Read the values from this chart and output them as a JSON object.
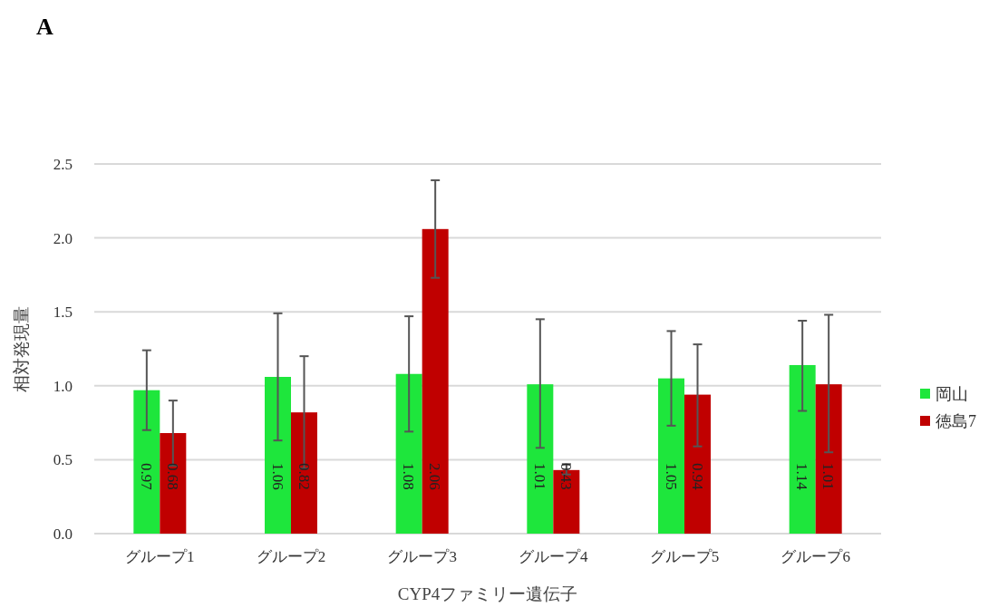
{
  "chart_data": {
    "type": "bar",
    "title": "A",
    "xlabel": "CYP4ファミリー遺伝子",
    "ylabel": "相対発現量",
    "categories": [
      "グループ1",
      "グループ2",
      "グループ3",
      "グループ4",
      "グループ5",
      "グループ6"
    ],
    "series": [
      {
        "name": "岡山",
        "color": "#1ee63c",
        "values": [
          0.97,
          1.06,
          1.08,
          1.01,
          1.05,
          1.14
        ],
        "errors": [
          [
            0.7,
            1.24
          ],
          [
            0.63,
            1.49
          ],
          [
            0.69,
            1.47
          ],
          [
            0.58,
            1.45
          ],
          [
            0.73,
            1.37
          ],
          [
            0.83,
            1.44
          ]
        ]
      },
      {
        "name": "徳島7",
        "color": "#c00000",
        "values": [
          0.68,
          0.82,
          2.06,
          0.43,
          0.94,
          1.01
        ],
        "errors": [
          [
            0.46,
            0.9
          ],
          [
            0.44,
            1.2
          ],
          [
            1.73,
            2.39
          ],
          [
            0.4,
            0.47
          ],
          [
            0.59,
            1.28
          ],
          [
            0.55,
            1.48
          ]
        ]
      }
    ],
    "ylim": [
      0,
      2.5
    ],
    "yticks": [
      {
        "value": 0,
        "label": "0.0"
      },
      0.5,
      {
        "value": 1,
        "label": "1.0"
      },
      1.5,
      {
        "value": 2,
        "label": "2.0"
      },
      2.5
    ],
    "grid": "y",
    "legend": "right",
    "data_labels": true
  }
}
